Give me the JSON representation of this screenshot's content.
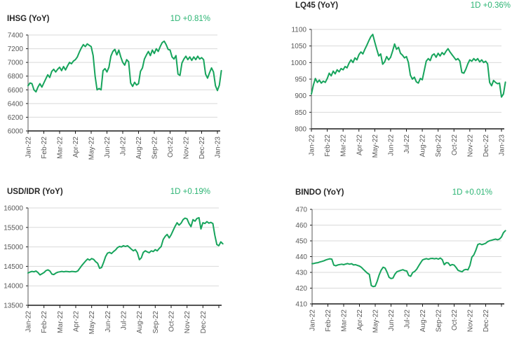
{
  "page": {
    "background": "#ffffff"
  },
  "colors": {
    "line_green": "#17A45C",
    "change_green": "#2BB473",
    "title_text": "#262626",
    "axis_text": "#595959",
    "gridline": "#D9D9D9",
    "axis_line": "#1A1A1A"
  },
  "chart_data": [
    {
      "id": "ihsg",
      "type": "line",
      "title": "IHSG (YoY)",
      "change_label": "1D +0.81%",
      "legend": "none",
      "grid": "horizontal",
      "ylim": [
        6000,
        7400
      ],
      "y_step": 200,
      "y_tick_labels": [
        "7400",
        "7200",
        "7000",
        "6800",
        "6600",
        "6400",
        "6200",
        "6000"
      ],
      "x_tick_labels": [
        "Jan-22",
        "Feb-22",
        "Mar-22",
        "Apr-22",
        "May-22",
        "Jun-22",
        "Jul-22",
        "Aug-22",
        "Sep-22",
        "Oct-22",
        "Nov-22",
        "Dec-22",
        "Jan-23"
      ],
      "values": [
        6660,
        6700,
        6690,
        6600,
        6570,
        6640,
        6690,
        6640,
        6700,
        6760,
        6820,
        6780,
        6870,
        6900,
        6860,
        6900,
        6930,
        6880,
        6940,
        6890,
        6950,
        7000,
        6980,
        7020,
        7040,
        7080,
        7150,
        7210,
        7260,
        7230,
        7270,
        7250,
        7230,
        7100,
        6800,
        6600,
        6620,
        6600,
        6880,
        6910,
        6860,
        6930,
        7090,
        7160,
        7190,
        7110,
        7180,
        7080,
        7000,
        6960,
        7040,
        7010,
        6700,
        6650,
        6710,
        6670,
        6690,
        6870,
        6920,
        7050,
        7110,
        7160,
        7100,
        7180,
        7130,
        7200,
        7160,
        7230,
        7290,
        7310,
        7260,
        7190,
        7180,
        7080,
        7050,
        7100,
        6830,
        6810,
        6990,
        7050,
        7090,
        7040,
        7080,
        7030,
        7080,
        7040,
        7090,
        7050,
        7070,
        7040,
        6830,
        6770,
        6850,
        6920,
        6860,
        6660,
        6590,
        6670,
        6880
      ]
    },
    {
      "id": "lq45",
      "type": "line",
      "title": "LQ45 (YoY)",
      "change_label": "1D +0.36%",
      "legend": "none",
      "grid": "horizontal",
      "ylim": [
        800,
        1100
      ],
      "y_step": 50,
      "y_tick_labels": [
        "1100",
        "1050",
        "1000",
        "950",
        "900",
        "850",
        "800"
      ],
      "x_tick_labels": [
        "Jan-22",
        "Feb-22",
        "Mar-22",
        "Apr-22",
        "May-22",
        "Jun-22",
        "Jul-22",
        "Aug-22",
        "Sep-22",
        "Oct-22",
        "Nov-22",
        "Dec-22",
        "Jan-23"
      ],
      "values": [
        905,
        932,
        952,
        940,
        947,
        938,
        944,
        940,
        952,
        968,
        960,
        974,
        966,
        978,
        972,
        982,
        978,
        988,
        984,
        998,
        1008,
        1000,
        1014,
        1008,
        1024,
        1032,
        1026,
        1040,
        1052,
        1066,
        1078,
        1085,
        1062,
        1040,
        1020,
        1026,
        995,
        1002,
        1018,
        1008,
        1016,
        1034,
        1056,
        1040,
        1046,
        1028,
        1022,
        1014,
        1018,
        1000,
        962,
        950,
        956,
        942,
        938,
        952,
        948,
        976,
        1004,
        1012,
        1006,
        1022,
        1026,
        1016,
        1028,
        1020,
        1030,
        1024,
        1034,
        1042,
        1032,
        1024,
        1016,
        1008,
        1012,
        1004,
        970,
        968,
        980,
        996,
        1008,
        1004,
        1012,
        1006,
        1012,
        1002,
        1008,
        1000,
        1004,
        996,
        940,
        930,
        946,
        940,
        936,
        938,
        896,
        905,
        941
      ]
    },
    {
      "id": "usdidr",
      "type": "line",
      "title": "USD/IDR (YoY)",
      "change_label": "1D +0.19%",
      "legend": "none",
      "grid": "horizontal",
      "ylim": [
        13500,
        16000
      ],
      "y_step": 500,
      "y_tick_labels": [
        "16000",
        "15500",
        "15000",
        "14500",
        "14000",
        "13500"
      ],
      "x_tick_labels": [
        "Jan-22",
        "Feb-22",
        "Mar-22",
        "Apr-22",
        "May-22",
        "Jun-22",
        "Jul-22",
        "Aug-22",
        "Sep-22",
        "Oct-22",
        "Nov-22",
        "Dec-22"
      ],
      "values": [
        14330,
        14355,
        14370,
        14360,
        14380,
        14340,
        14280,
        14310,
        14340,
        14390,
        14410,
        14380,
        14300,
        14290,
        14330,
        14350,
        14360,
        14370,
        14360,
        14370,
        14365,
        14360,
        14370,
        14365,
        14360,
        14380,
        14450,
        14520,
        14580,
        14640,
        14690,
        14660,
        14700,
        14680,
        14620,
        14580,
        14450,
        14470,
        14600,
        14750,
        14840,
        14860,
        14830,
        14880,
        14920,
        14980,
        15010,
        15000,
        15030,
        15010,
        15030,
        14990,
        14940,
        14900,
        14930,
        14850,
        14670,
        14720,
        14860,
        14900,
        14870,
        14850,
        14900,
        14880,
        14930,
        14900,
        14960,
        15010,
        15190,
        15270,
        15320,
        15230,
        15310,
        15420,
        15530,
        15620,
        15560,
        15610,
        15700,
        15740,
        15720,
        15600,
        15520,
        15700,
        15660,
        15730,
        15750,
        15460,
        15620,
        15600,
        15650,
        15610,
        15630,
        15600,
        15300,
        15060,
        15030,
        15130,
        15080
      ]
    },
    {
      "id": "bindo",
      "type": "line",
      "title": "BINDO (YoY)",
      "change_label": "1D +0.01%",
      "legend": "none",
      "grid": "horizontal",
      "ylim": [
        410,
        470
      ],
      "y_step": 10,
      "y_tick_labels": [
        "470",
        "460",
        "450",
        "440",
        "430",
        "420",
        "410"
      ],
      "x_tick_labels": [
        "Jan-22",
        "Feb-22",
        "Mar-22",
        "Apr-22",
        "May-22",
        "Jun-22",
        "Jul-22",
        "Aug-22",
        "Sep-22",
        "Oct-22",
        "Nov-22",
        "Dec-22"
      ],
      "values": [
        435.5,
        435.7,
        436.0,
        436.2,
        436.6,
        437.0,
        437.4,
        437.9,
        438.3,
        438.6,
        438.4,
        434.6,
        434.2,
        434.7,
        435.0,
        435.2,
        434.9,
        435.3,
        435.6,
        435.2,
        435.5,
        434.7,
        434.9,
        434.4,
        434.0,
        433.2,
        431.9,
        430.7,
        429.5,
        428.7,
        421.6,
        421.0,
        421.3,
        424.4,
        428.4,
        431.4,
        433.3,
        432.7,
        430.1,
        426.9,
        426.1,
        426.4,
        428.9,
        430.4,
        430.9,
        431.3,
        431.7,
        431.1,
        430.9,
        428.0,
        427.5,
        429.9,
        430.6,
        432.0,
        434.1,
        436.1,
        437.9,
        438.4,
        438.7,
        438.3,
        438.8,
        438.9,
        438.6,
        438.9,
        438.4,
        439.1,
        438.1,
        434.9,
        436.2,
        436.0,
        434.3,
        435.0,
        434.6,
        433.1,
        431.3,
        430.8,
        430.4,
        431.5,
        431.9,
        431.6,
        434.4,
        439.7,
        441.1,
        444.0,
        447.7,
        448.2,
        447.6,
        448.0,
        448.5,
        449.5,
        450.1,
        450.4,
        450.8,
        451.1,
        450.7,
        451.2,
        452.5,
        455.2,
        456.5
      ]
    }
  ]
}
